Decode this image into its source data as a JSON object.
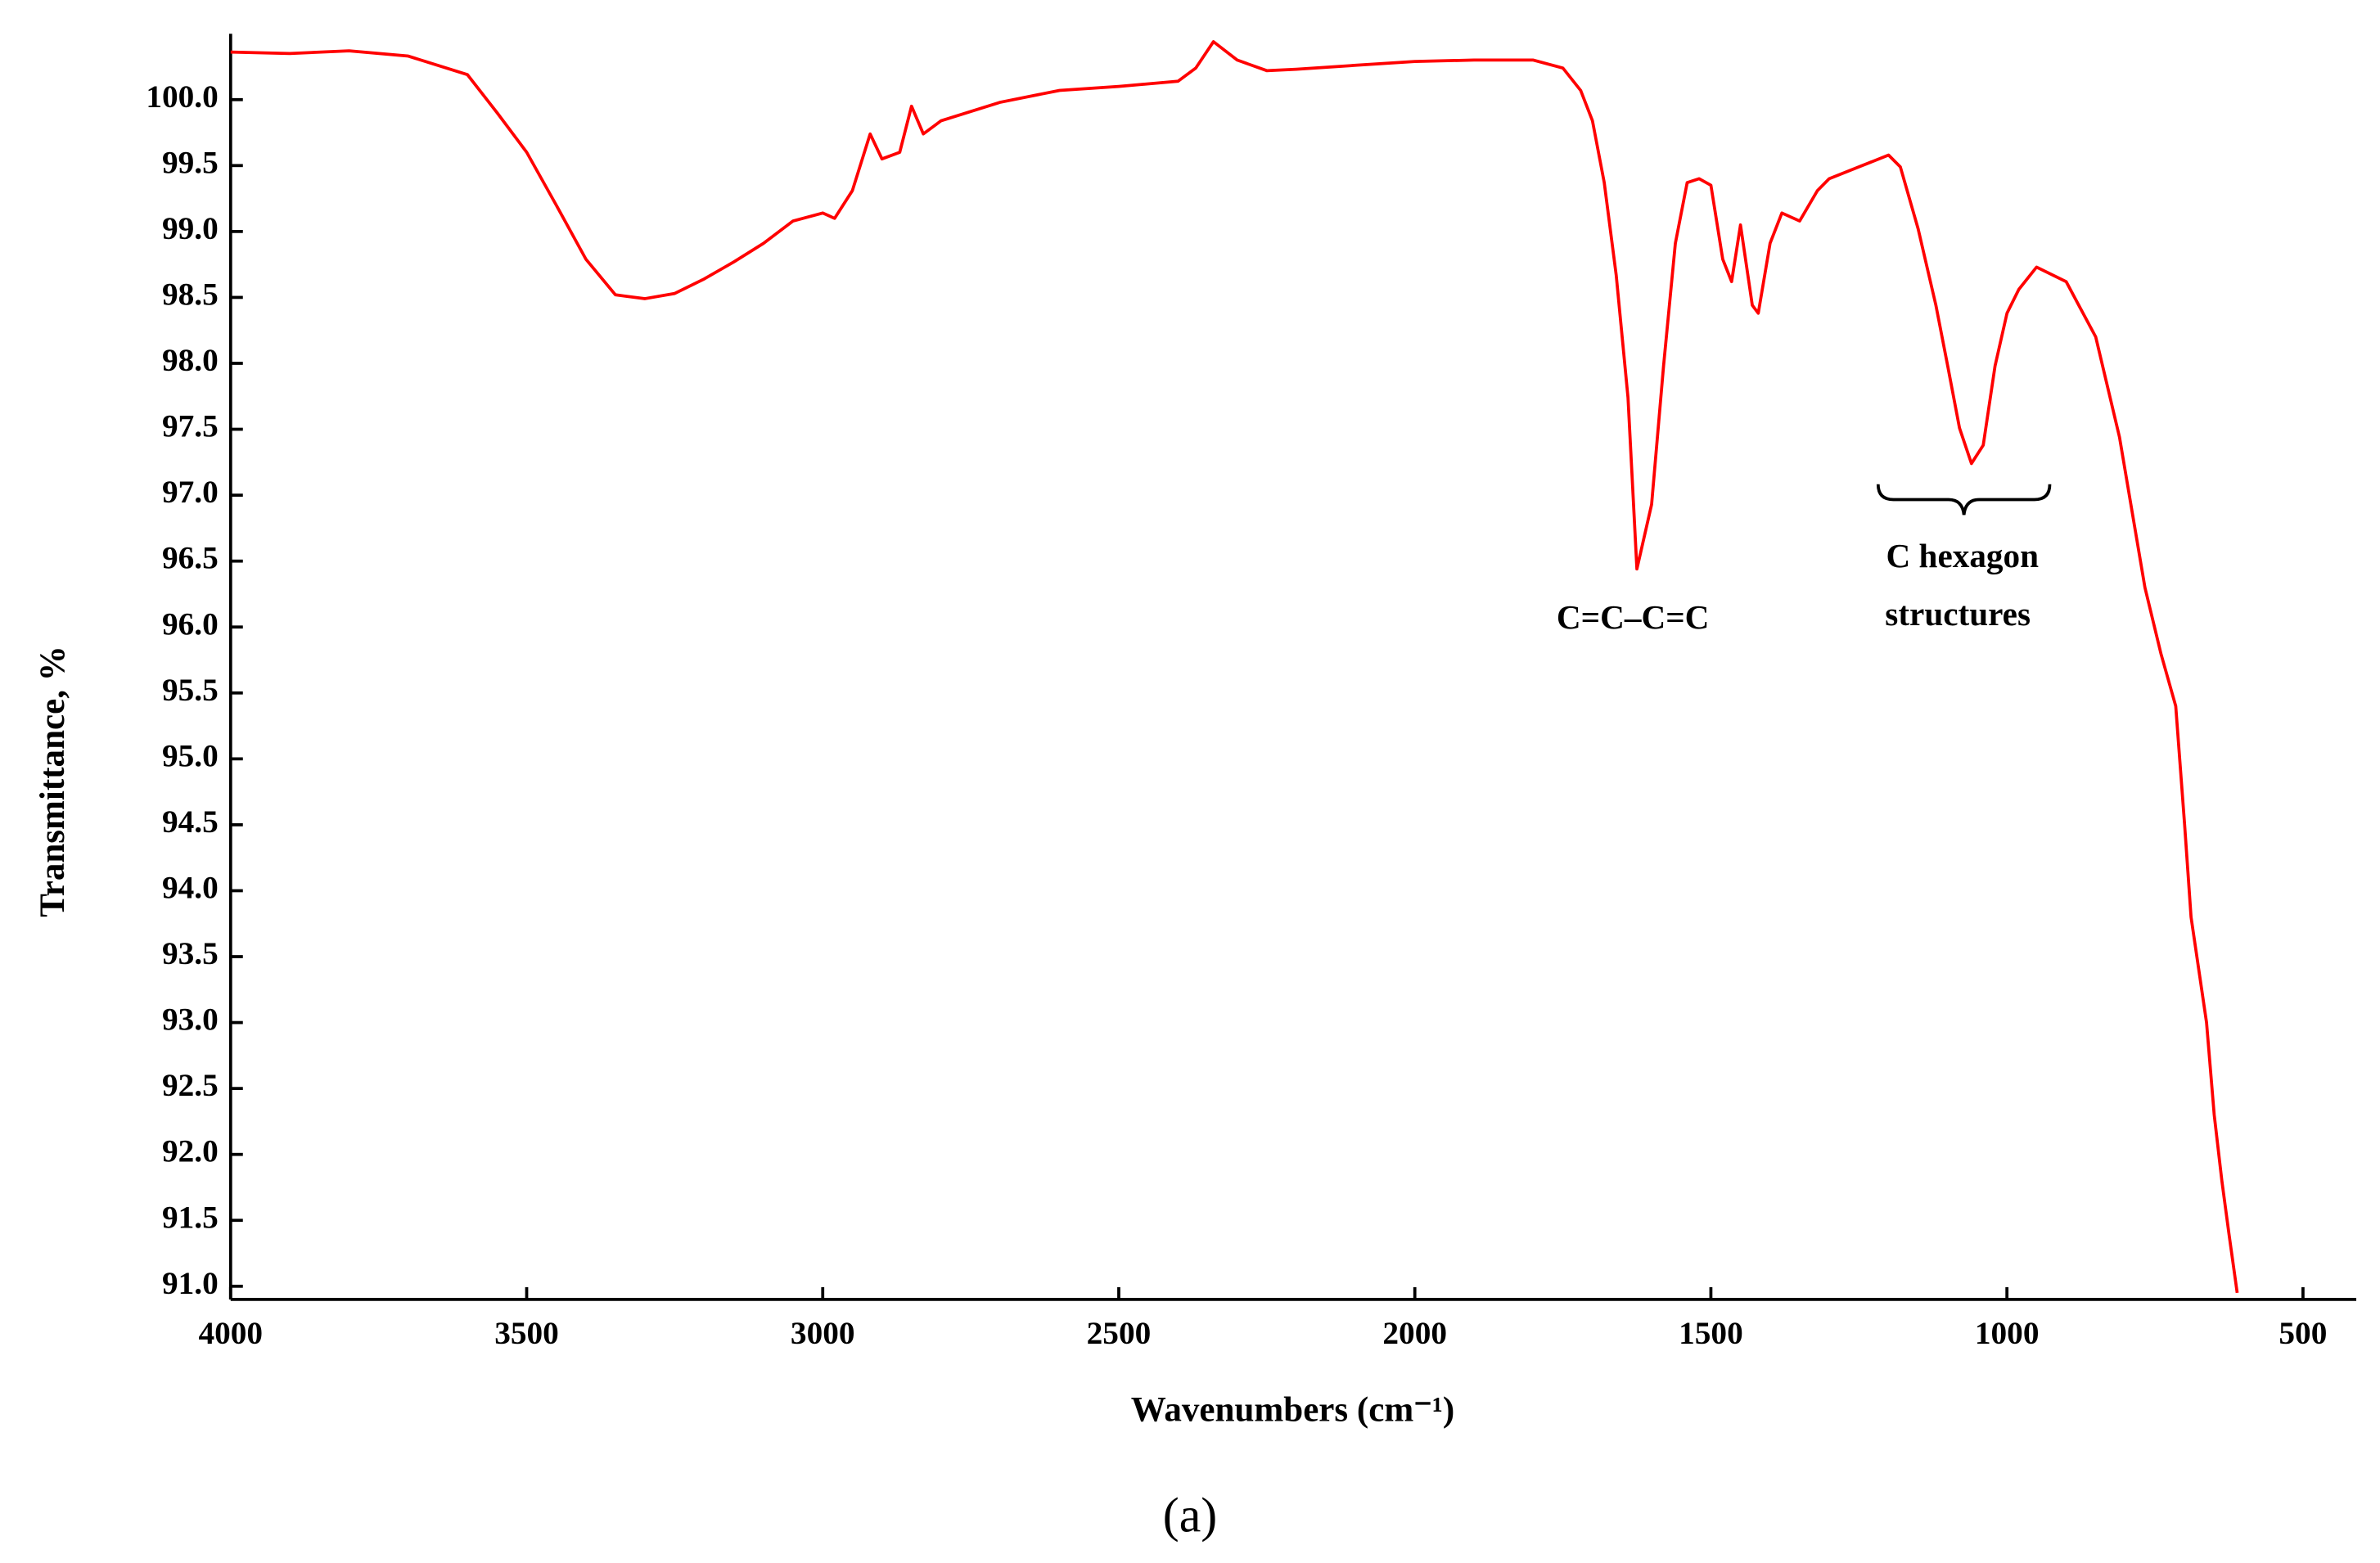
{
  "chart_data": {
    "type": "line",
    "xlabel": "Wavenumbers (cm⁻¹)",
    "ylabel": "Transmittance, %",
    "caption": "(a)",
    "annotations": [
      "C=C–C=C",
      "C hexagon",
      "structures"
    ],
    "color": "#ff0000",
    "xlim": [
      4000,
      410
    ],
    "reverse_x": true,
    "xticks": [
      4000,
      3500,
      3000,
      2500,
      2000,
      1500,
      1000,
      500
    ],
    "ylim": [
      90.9,
      100.5
    ],
    "yticks": [
      {
        "value": 100,
        "label": "100.0"
      },
      99.5,
      {
        "value": 99,
        "label": "99.0"
      },
      98.5,
      {
        "value": 98,
        "label": "98.0"
      },
      97.5,
      {
        "value": 97,
        "label": "97.0"
      },
      96.5,
      {
        "value": 96,
        "label": "96.0"
      },
      95.5,
      {
        "value": 95,
        "label": "95.0"
      },
      94.5,
      {
        "value": 94,
        "label": "94.0"
      },
      93.5,
      {
        "value": 93,
        "label": "93.0"
      },
      92.5,
      {
        "value": 92,
        "label": "92.0"
      },
      91.5,
      {
        "value": 91,
        "label": "91.0"
      }
    ],
    "x": [
      4000,
      3900,
      3800,
      3700,
      3600,
      3550,
      3500,
      3450,
      3400,
      3350,
      3300,
      3250,
      3200,
      3150,
      3100,
      3050,
      3000,
      2980,
      2950,
      2920,
      2900,
      2870,
      2850,
      2830,
      2800,
      2700,
      2600,
      2500,
      2400,
      2370,
      2340,
      2300,
      2250,
      2200,
      2100,
      2000,
      1900,
      1800,
      1750,
      1720,
      1700,
      1680,
      1660,
      1640,
      1625,
      1600,
      1580,
      1560,
      1540,
      1520,
      1500,
      1480,
      1465,
      1450,
      1430,
      1420,
      1400,
      1380,
      1350,
      1320,
      1300,
      1250,
      1200,
      1180,
      1150,
      1120,
      1100,
      1080,
      1060,
      1040,
      1020,
      1000,
      980,
      950,
      900,
      850,
      810,
      767,
      740,
      715,
      700,
      689,
      663,
      650,
      637,
      625,
      611
    ],
    "values": [
      100.36,
      100.35,
      100.37,
      100.33,
      100.19,
      99.9,
      99.6,
      99.2,
      98.79,
      98.52,
      98.49,
      98.53,
      98.64,
      98.77,
      98.91,
      99.08,
      99.14,
      99.1,
      99.31,
      99.74,
      99.55,
      99.6,
      99.95,
      99.74,
      99.84,
      99.98,
      100.07,
      100.1,
      100.14,
      100.24,
      100.44,
      100.3,
      100.22,
      100.23,
      100.26,
      100.29,
      100.3,
      100.3,
      100.24,
      100.07,
      99.84,
      99.37,
      98.67,
      97.74,
      96.44,
      96.93,
      97.98,
      98.91,
      99.37,
      99.4,
      99.35,
      98.79,
      98.62,
      99.05,
      98.44,
      98.38,
      98.91,
      99.14,
      99.08,
      99.31,
      99.4,
      99.49,
      99.58,
      99.49,
      99.02,
      98.44,
      97.98,
      97.51,
      97.24,
      97.38,
      97.98,
      98.38,
      98.56,
      98.73,
      98.62,
      98.2,
      97.44,
      96.3,
      95.8,
      95.4,
      94.5,
      93.8,
      93.0,
      92.3,
      91.8,
      91.4,
      90.95
    ]
  }
}
